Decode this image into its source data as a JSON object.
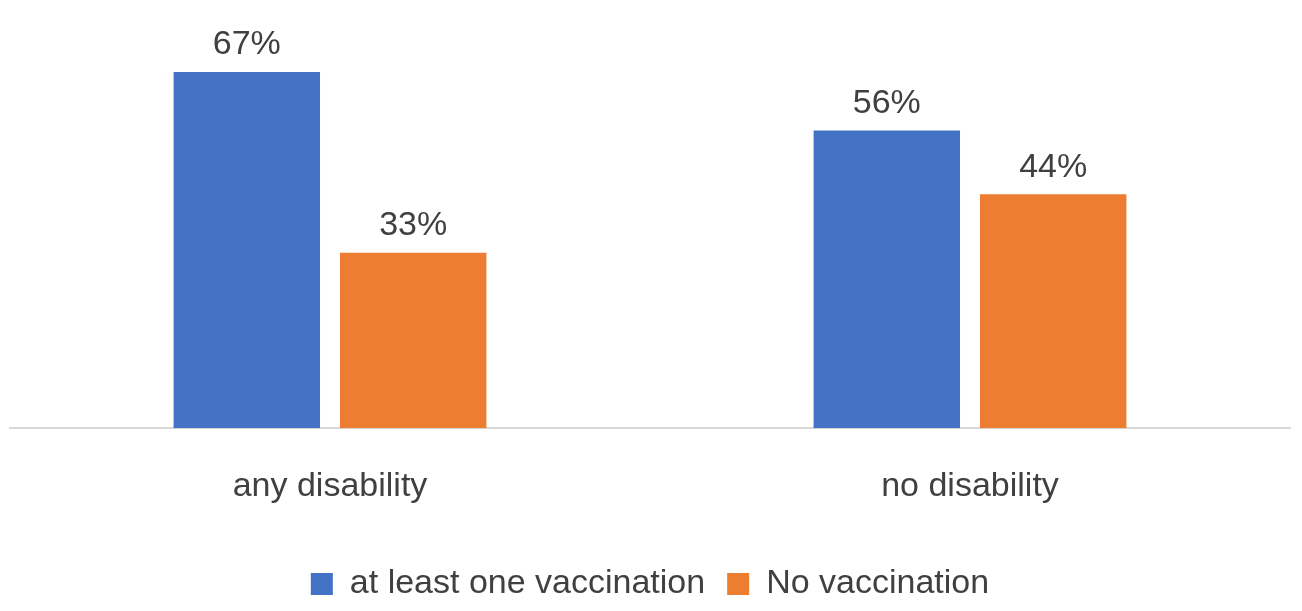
{
  "chart_data": {
    "type": "bar",
    "categories": [
      "any disability",
      "no disability"
    ],
    "series": [
      {
        "name": "at least one vaccination",
        "color": "#4472c4",
        "values": [
          67,
          56
        ],
        "value_labels": [
          "67%",
          "56%"
        ]
      },
      {
        "name": "No vaccination",
        "color": "#ed7d31",
        "values": [
          33,
          44
        ],
        "value_labels": [
          "33%",
          "44%"
        ]
      }
    ],
    "tick_labels": "x",
    "grid": false,
    "legend": "bottom"
  }
}
